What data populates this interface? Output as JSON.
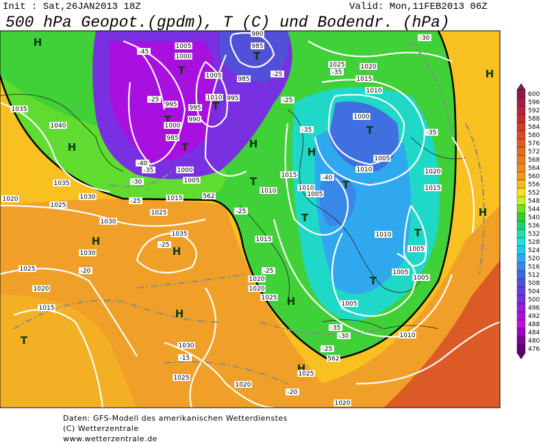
{
  "header": {
    "init": "Init : Sat,26JAN2013 18Z",
    "valid": "Valid: Mon,11FEB2013 06Z",
    "title": "500 hPa Geopot.(gpdm), T (C) und Bodendr. (hPa)"
  },
  "colorbar": {
    "levels": [
      600,
      596,
      592,
      588,
      584,
      580,
      576,
      572,
      568,
      564,
      560,
      556,
      552,
      548,
      544,
      540,
      536,
      532,
      528,
      524,
      520,
      516,
      512,
      508,
      504,
      500,
      496,
      492,
      488,
      484,
      480,
      476
    ],
    "colors": [
      "#8c1a4a",
      "#a0204a",
      "#b42440",
      "#c82a30",
      "#d43a28",
      "#dc4a24",
      "#e05a22",
      "#e46a20",
      "#e87a20",
      "#ec8a20",
      "#f09a20",
      "#f8b820",
      "#f8e020",
      "#c8f020",
      "#70e020",
      "#30d030",
      "#20d070",
      "#20e0b0",
      "#20e0e0",
      "#20c8f0",
      "#30a8f0",
      "#3888e8",
      "#4068e0",
      "#5050d8",
      "#6040d8",
      "#7830e0",
      "#9020e0",
      "#a810e0",
      "#c010e0",
      "#a000c0",
      "#800090",
      "#600070"
    ]
  },
  "map": {
    "labels": [
      "H",
      "H",
      "H",
      "H",
      "H",
      "T",
      "H",
      "T",
      "H",
      "T",
      "T",
      "T",
      "T",
      "T",
      "H",
      "H",
      "H",
      "H",
      "T",
      "T",
      "T",
      "T",
      "T",
      "1035",
      "1040",
      "1035",
      "1030",
      "1025",
      "1020",
      "1030",
      "1035",
      "1030",
      "1025",
      "1020",
      "1015",
      "1030",
      "1025",
      "1020",
      "1025",
      "1020",
      "1010",
      "1005",
      "1005",
      "1005",
      "1010",
      "1005",
      "1015",
      "1020",
      "1025",
      "1015",
      "1020",
      "1025",
      "1015",
      "1010",
      "1010",
      "1005",
      "1010",
      "1005",
      "1000",
      "1010",
      "1015",
      "1020",
      "1025",
      "1020",
      "1015",
      "1005",
      "1000",
      "1005",
      "1010",
      "995",
      "995",
      "990",
      "985",
      "1000",
      "1000",
      "1005",
      "985",
      "995",
      "980",
      "985",
      "-45",
      "-25",
      "-40",
      "-35",
      "-30",
      "-25",
      "-25",
      "-25",
      "-20",
      "-25",
      "-15",
      "-20",
      "-35",
      "-30",
      "-25",
      "-35",
      "-40",
      "-35",
      "-35",
      "-25",
      "-25",
      "-30",
      "562",
      "562"
    ]
  },
  "footer": {
    "lines": [
      "Daten: GFS-Modell des amerikanischen Wetterdienstes",
      "(C) Wetterzentrale",
      "www.wetterzentrale.de"
    ]
  }
}
